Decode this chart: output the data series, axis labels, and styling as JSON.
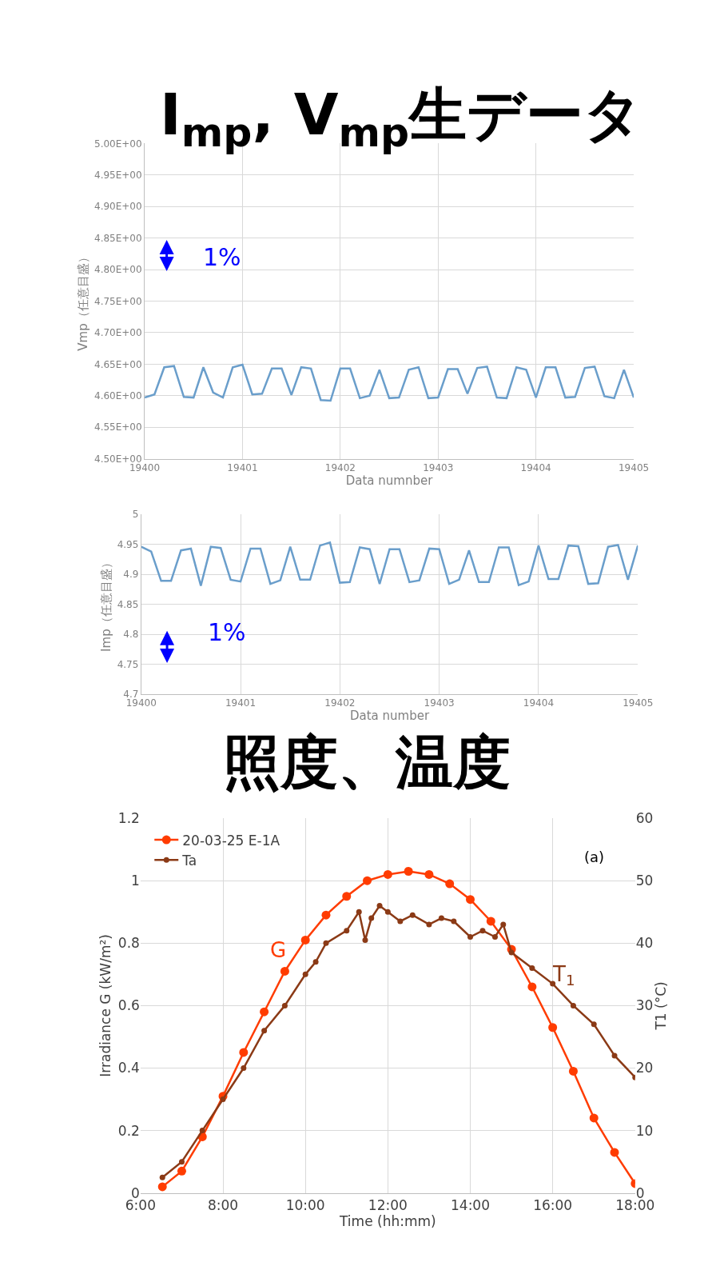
{
  "chart_data": [
    {
      "type": "line",
      "title": "I$_{mp}$, V$_{mp}$生データ",
      "xlabel": "Data numnber",
      "ylabel": "Vmp（任意目盛）",
      "annotations": [
        "1%"
      ],
      "grid": true,
      "marker": "none",
      "line_style": "solid",
      "xlim": [
        19400,
        19405
      ],
      "xticks": [
        19400,
        19401,
        19402,
        19403,
        19404,
        19405
      ],
      "ylim": [
        4.5,
        5.0
      ],
      "yticks": [
        {
          "value": 4.5,
          "label": "4.50E+00"
        },
        {
          "value": 4.55,
          "label": "4.55E+00"
        },
        {
          "value": 4.6,
          "label": "4.60E+00"
        },
        {
          "value": 4.65,
          "label": "4.65E+00"
        },
        {
          "value": 4.7,
          "label": "4.70E+00"
        },
        {
          "value": 4.75,
          "label": "4.75E+00"
        },
        {
          "value": 4.8,
          "label": "4.80E+00"
        },
        {
          "value": 4.85,
          "label": "4.85E+00"
        },
        {
          "value": 4.9,
          "label": "4.90E+00"
        },
        {
          "value": 4.95,
          "label": "4.95E+00"
        },
        {
          "value": 5.0,
          "label": "5.00E+00"
        }
      ],
      "x": [
        19400.0,
        19400.1,
        19400.2,
        19400.3,
        19400.4,
        19400.5,
        19400.6,
        19400.7,
        19400.8,
        19400.9,
        19401.0,
        19401.1,
        19401.2,
        19401.3,
        19401.4,
        19401.5,
        19401.6,
        19401.7,
        19401.8,
        19401.9,
        19402.0,
        19402.1,
        19402.2,
        19402.3,
        19402.4,
        19402.5,
        19402.6,
        19402.7,
        19402.8,
        19402.9,
        19403.0,
        19403.1,
        19403.2,
        19403.3,
        19403.4,
        19403.5,
        19403.6,
        19403.7,
        19403.8,
        19403.9,
        19404.0,
        19404.1,
        19404.2,
        19404.3,
        19404.4,
        19404.5,
        19404.6,
        19404.7,
        19404.8,
        19404.9,
        19405.0
      ],
      "series": [
        {
          "color": "#6a9ecb",
          "values": [
            4.597,
            4.602,
            4.645,
            4.647,
            4.598,
            4.597,
            4.645,
            4.605,
            4.597,
            4.645,
            4.649,
            4.602,
            4.603,
            4.643,
            4.643,
            4.601,
            4.645,
            4.643,
            4.593,
            4.592,
            4.643,
            4.643,
            4.596,
            4.6,
            4.641,
            4.596,
            4.597,
            4.641,
            4.645,
            4.596,
            4.597,
            4.642,
            4.642,
            4.603,
            4.644,
            4.646,
            4.597,
            4.596,
            4.645,
            4.641,
            4.597,
            4.645,
            4.645,
            4.597,
            4.598,
            4.644,
            4.646,
            4.599,
            4.596,
            4.641,
            4.597
          ]
        }
      ]
    },
    {
      "type": "line",
      "xlabel": "Data number",
      "ylabel": "Imp（任意目盛）",
      "annotations": [
        "1%"
      ],
      "grid": true,
      "marker": "none",
      "line_style": "solid",
      "xlim": [
        19400,
        19405
      ],
      "xticks": [
        19400,
        19401,
        19402,
        19403,
        19404,
        19405
      ],
      "ylim": [
        4.7,
        5
      ],
      "yticks": [
        4.7,
        4.75,
        4.8,
        4.85,
        4.9,
        4.95,
        5
      ],
      "x": [
        19400.0,
        19400.1,
        19400.2,
        19400.3,
        19400.4,
        19400.5,
        19400.6,
        19400.7,
        19400.8,
        19400.9,
        19401.0,
        19401.1,
        19401.2,
        19401.3,
        19401.4,
        19401.5,
        19401.6,
        19401.7,
        19401.8,
        19401.9,
        19402.0,
        19402.1,
        19402.2,
        19402.3,
        19402.4,
        19402.5,
        19402.6,
        19402.7,
        19402.8,
        19402.9,
        19403.0,
        19403.1,
        19403.2,
        19403.3,
        19403.4,
        19403.5,
        19403.6,
        19403.7,
        19403.8,
        19403.9,
        19404.0,
        19404.1,
        19404.2,
        19404.3,
        19404.4,
        19404.5,
        19404.6,
        19404.7,
        19404.8,
        19404.9,
        19405.0
      ],
      "series": [
        {
          "color": "#6a9ecb",
          "values": [
            4.946,
            4.938,
            4.889,
            4.889,
            4.94,
            4.943,
            4.881,
            4.946,
            4.944,
            4.891,
            4.888,
            4.943,
            4.943,
            4.884,
            4.89,
            4.946,
            4.891,
            4.891,
            4.948,
            4.953,
            4.886,
            4.887,
            4.945,
            4.942,
            4.884,
            4.942,
            4.942,
            4.887,
            4.89,
            4.943,
            4.942,
            4.884,
            4.891,
            4.94,
            4.887,
            4.887,
            4.945,
            4.945,
            4.882,
            4.888,
            4.948,
            4.892,
            4.892,
            4.948,
            4.947,
            4.884,
            4.885,
            4.946,
            4.949,
            4.891,
            4.948
          ]
        }
      ]
    },
    {
      "type": "line",
      "title": "照度、温度",
      "xlabel": "Time (hh:mm)",
      "ylabel": "Irradiance G (kW/m²)",
      "y2label": "T1 (°C)",
      "annotations": [
        "G",
        "T$_{1}$",
        "(a)"
      ],
      "grid": true,
      "legend": "top left",
      "marker": "circle",
      "line_style": "solid",
      "xlim": [
        6,
        18
      ],
      "xticks": [
        {
          "value": 6,
          "label": "6:00"
        },
        {
          "value": 8,
          "label": "8:00"
        },
        {
          "value": 10,
          "label": "10:00"
        },
        {
          "value": 12,
          "label": "12:00"
        },
        {
          "value": 14,
          "label": "14:00"
        },
        {
          "value": 16,
          "label": "16:00"
        },
        {
          "value": 18,
          "label": "18:00"
        }
      ],
      "ylim": [
        0,
        1.2
      ],
      "yticks": [
        0,
        0.2,
        0.4,
        0.6,
        0.8,
        1,
        1.2
      ],
      "y2lim": [
        0,
        60
      ],
      "y2ticks": [
        0,
        10,
        20,
        30,
        40,
        50,
        60
      ],
      "series": [
        {
          "name": "20-03-25 E-1A",
          "color": "#ff3c00",
          "x": [
            6.53,
            7.0,
            7.5,
            8.0,
            8.5,
            9.0,
            9.5,
            10.0,
            10.5,
            11.0,
            11.5,
            12.0,
            12.5,
            13.0,
            13.5,
            14.0,
            14.5,
            15.0,
            15.5,
            16.0,
            16.5,
            17.0,
            17.5,
            18.0
          ],
          "values": [
            0.02,
            0.07,
            0.18,
            0.31,
            0.45,
            0.58,
            0.71,
            0.81,
            0.89,
            0.95,
            1.0,
            1.02,
            1.03,
            1.02,
            0.99,
            0.94,
            0.87,
            0.78,
            0.66,
            0.53,
            0.39,
            0.24,
            0.13,
            0.03
          ]
        },
        {
          "name": "Ta",
          "color": "#8b3a16",
          "axis": "y2",
          "x": [
            6.53,
            7.0,
            7.5,
            8.0,
            8.5,
            9.0,
            9.5,
            10.0,
            10.25,
            10.5,
            11.0,
            11.3,
            11.45,
            11.6,
            11.8,
            12.0,
            12.3,
            12.6,
            13.0,
            13.3,
            13.6,
            14.0,
            14.3,
            14.6,
            14.8,
            15.0,
            15.5,
            16.0,
            16.5,
            17.0,
            17.5,
            18.0
          ],
          "values": [
            2.5,
            5,
            10,
            15,
            20,
            26,
            30,
            35,
            37,
            40,
            42,
            45,
            40.5,
            44,
            46,
            45,
            43.5,
            44.5,
            43,
            44,
            43.5,
            41,
            42,
            41,
            43,
            38.5,
            36,
            33.5,
            30,
            27,
            22,
            18.5
          ]
        }
      ]
    }
  ]
}
